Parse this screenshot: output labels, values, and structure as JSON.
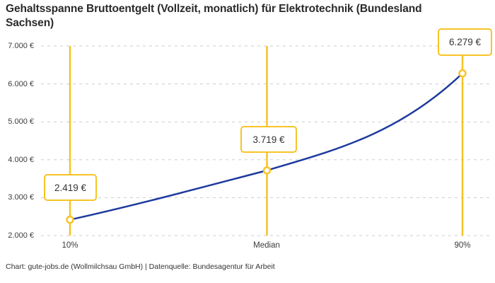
{
  "page": {
    "title": "Gehaltsspanne Bruttoentgelt (Vollzeit, monatlich) für Elektrotechnik (Bundesland Sachsen)",
    "footer": "Chart: gute-jobs.de (Wollmilchsau GmbH) | Datenquelle: Bundesagentur für Arbeit"
  },
  "colors": {
    "accent_yellow": "#f7c325",
    "curve_blue": "#1e3a9e",
    "gridline_gray": "#cdcdcd",
    "text_dark": "#333333"
  },
  "chart_data": {
    "type": "line",
    "title": "Gehaltsspanne Bruttoentgelt (Vollzeit, monatlich) für Elektrotechnik (Bundesland Sachsen)",
    "categories": [
      "10%",
      "Median",
      "90%"
    ],
    "values": [
      2419,
      3719,
      6279
    ],
    "point_labels": [
      "2.419 €",
      "3.719 €",
      "6.279 €"
    ],
    "y_tick_labels": [
      "7.000 €",
      "6.000 €",
      "5.000 €",
      "4.000 €",
      "3.000 €",
      "2.000 €"
    ],
    "y_tick_values": [
      7000,
      6000,
      5000,
      4000,
      3000,
      2000
    ],
    "ylim": [
      2000,
      7000
    ],
    "xlabel": "",
    "ylabel": "",
    "grid": "horizontal-dashed",
    "legend": "none",
    "marker": "open-circle",
    "attribution": "Chart: gute-jobs.de (Wollmilchsau GmbH)",
    "source": "Bundesagentur für Arbeit"
  }
}
